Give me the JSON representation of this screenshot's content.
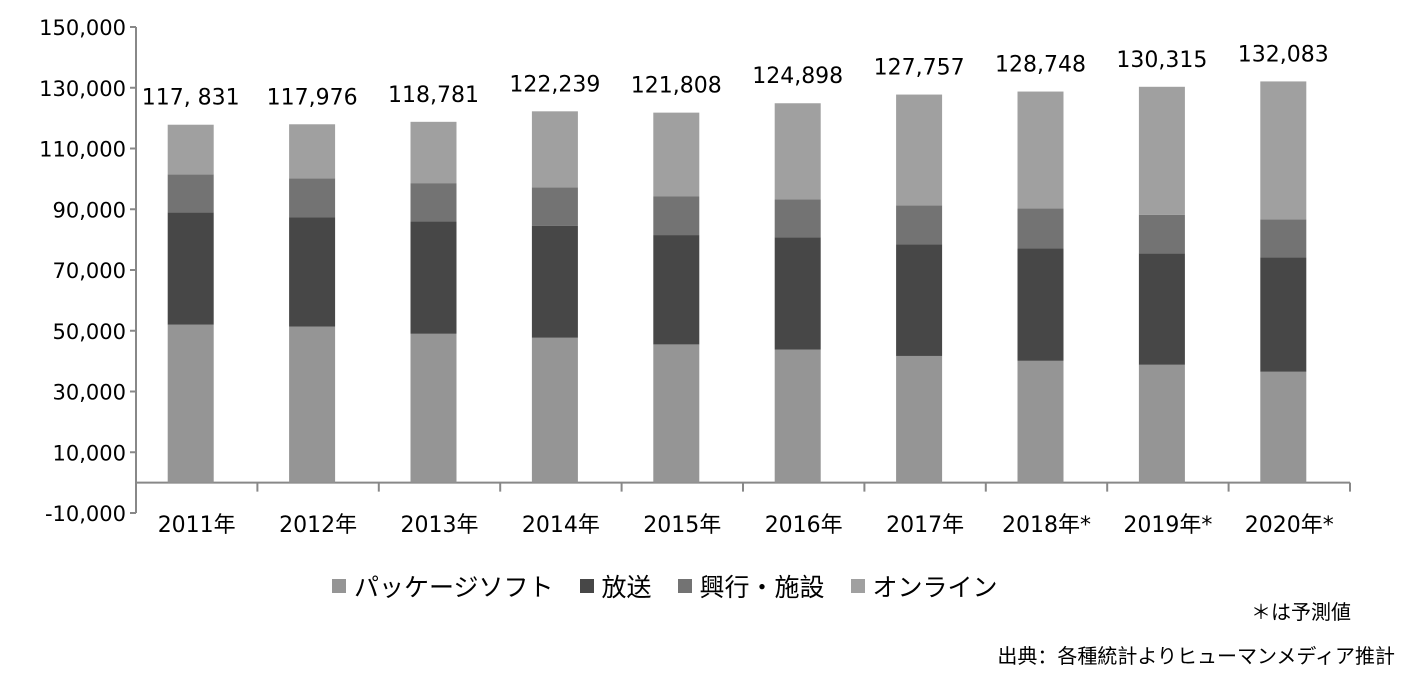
{
  "chart_data": {
    "type": "bar",
    "stacked": true,
    "categories": [
      "2011年",
      "2012年",
      "2013年",
      "2014年",
      "2015年",
      "2016年",
      "2017年",
      "2018年*",
      "2019年*",
      "2020年*"
    ],
    "series": [
      {
        "name": "パッケージソフト",
        "color": "#959595",
        "values": [
          52000,
          51400,
          49000,
          47700,
          45500,
          43800,
          41700,
          40100,
          38800,
          36500
        ]
      },
      {
        "name": "放送",
        "color": "#474747",
        "values": [
          37000,
          36000,
          37000,
          36800,
          36000,
          37000,
          36800,
          37000,
          36700,
          37600
        ]
      },
      {
        "name": "興行・施設",
        "color": "#737373",
        "values": [
          12500,
          12800,
          12600,
          12700,
          12700,
          12400,
          12800,
          13200,
          12700,
          12600
        ]
      },
      {
        "name": "オンライン",
        "color": "#a0a0a0",
        "values": [
          16331,
          17776,
          20181,
          25039,
          27608,
          31698,
          36457,
          38448,
          42115,
          45383
        ]
      }
    ],
    "totals": [
      "117, 831",
      "117,976",
      "118,781",
      "122,239",
      "121,808",
      "124,898",
      "127,757",
      "128,748",
      "130,315",
      "132,083"
    ],
    "ylim": [
      -10000,
      150000
    ],
    "yticks": [
      "-10,000",
      "10,000",
      "30,000",
      "50,000",
      "70,000",
      "90,000",
      "110,000",
      "130,000",
      "150,000"
    ],
    "ytick_values": [
      -10000,
      10000,
      30000,
      50000,
      70000,
      90000,
      110000,
      130000,
      150000
    ],
    "grid": false,
    "legend_position": "bottom"
  },
  "note": "＊は予測値",
  "source": "出典：各種統計よりヒューマンメディア推計"
}
